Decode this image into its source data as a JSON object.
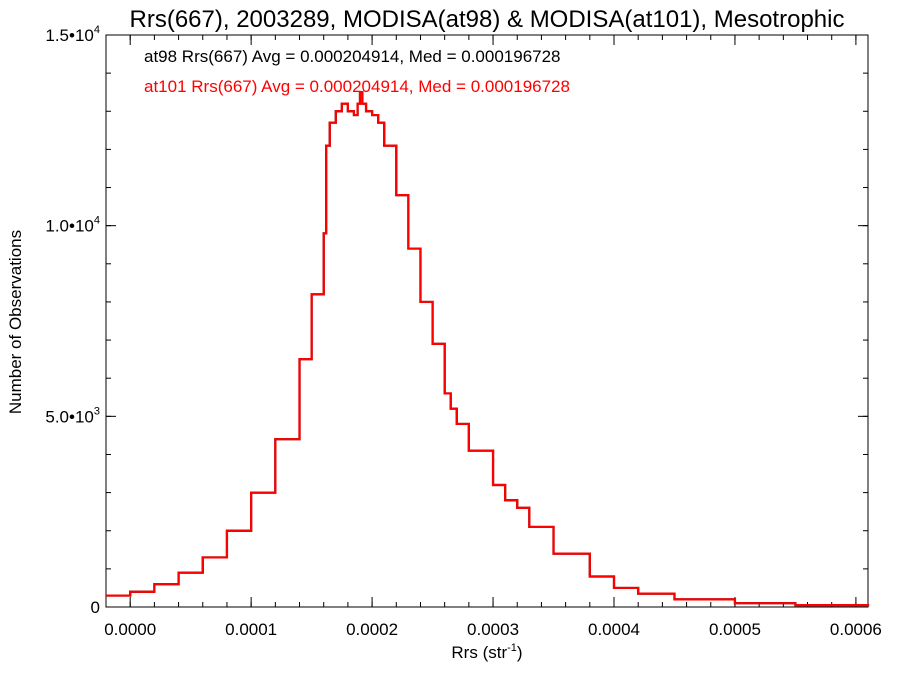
{
  "chart_data": {
    "type": "histogram-step",
    "title": "Rrs(667), 2003289, MODISA(at98) & MODISA(at101), Mesotrophic",
    "xlabel": "Rrs (str",
    "xlabel_sup": "-1",
    "xlabel_suffix": ")",
    "ylabel": "Number of Observations",
    "xlim": [
      -2e-05,
      0.00061
    ],
    "ylim": [
      0,
      15000
    ],
    "x_ticks": [
      {
        "value": 0.0,
        "label": "0.0000"
      },
      {
        "value": 0.0001,
        "label": "0.0001"
      },
      {
        "value": 0.0002,
        "label": "0.0002"
      },
      {
        "value": 0.0003,
        "label": "0.0003"
      },
      {
        "value": 0.0004,
        "label": "0.0004"
      },
      {
        "value": 0.0005,
        "label": "0.0005"
      },
      {
        "value": 0.0006,
        "label": "0.0006"
      }
    ],
    "y_ticks": [
      {
        "value": 0,
        "label": "0",
        "sup": ""
      },
      {
        "value": 5000,
        "label": "5.0•10",
        "sup": "3"
      },
      {
        "value": 10000,
        "label": "1.0•10",
        "sup": "4"
      },
      {
        "value": 15000,
        "label": "1.5•10",
        "sup": "4"
      }
    ],
    "grid": false,
    "annotations": [
      {
        "text": "at98 Rrs(667) Avg = 0.000204914, Med = 0.000196728",
        "color": "#000000"
      },
      {
        "text": "at101 Rrs(667) Avg = 0.000204914, Med = 0.000196728",
        "color": "#ff0000"
      }
    ],
    "series": [
      {
        "name": "at98",
        "color": "#000000",
        "x": [
          -2e-05,
          0.0,
          2e-05,
          4e-05,
          6e-05,
          8e-05,
          0.0001,
          0.00012,
          0.00014,
          0.00015,
          0.00016,
          0.000162,
          0.000165,
          0.00017,
          0.000175,
          0.00018,
          0.000185,
          0.000188,
          0.00019,
          0.000192,
          0.000195,
          0.0002,
          0.000205,
          0.00021,
          0.00022,
          0.00023,
          0.00024,
          0.00025,
          0.00026,
          0.000265,
          0.00027,
          0.00028,
          0.0003,
          0.00031,
          0.00032,
          0.00033,
          0.00035,
          0.00038,
          0.0004,
          0.00042,
          0.00045,
          0.0005,
          0.00055,
          0.00061
        ],
        "y": [
          300,
          400,
          600,
          900,
          1300,
          2000,
          3000,
          4400,
          6500,
          8200,
          9800,
          12100,
          12700,
          13000,
          13200,
          13000,
          12900,
          13200,
          13500,
          13200,
          13000,
          12900,
          12700,
          12100,
          10800,
          9400,
          8000,
          6900,
          5600,
          5200,
          4800,
          4100,
          3200,
          2800,
          2600,
          2100,
          1400,
          800,
          500,
          350,
          200,
          100,
          50,
          20
        ]
      },
      {
        "name": "at101",
        "color": "#ff0000",
        "x": [
          -2e-05,
          0.0,
          2e-05,
          4e-05,
          6e-05,
          8e-05,
          0.0001,
          0.00012,
          0.00014,
          0.00015,
          0.00016,
          0.000162,
          0.000165,
          0.00017,
          0.000175,
          0.00018,
          0.000185,
          0.000188,
          0.00019,
          0.000192,
          0.000195,
          0.0002,
          0.000205,
          0.00021,
          0.00022,
          0.00023,
          0.00024,
          0.00025,
          0.00026,
          0.000265,
          0.00027,
          0.00028,
          0.0003,
          0.00031,
          0.00032,
          0.00033,
          0.00035,
          0.00038,
          0.0004,
          0.00042,
          0.00045,
          0.0005,
          0.00055,
          0.00061
        ],
        "y": [
          300,
          400,
          600,
          900,
          1300,
          2000,
          3000,
          4400,
          6500,
          8200,
          9800,
          12100,
          12700,
          13000,
          13200,
          13000,
          12900,
          13200,
          13500,
          13200,
          13000,
          12900,
          12700,
          12100,
          10800,
          9400,
          8000,
          6900,
          5600,
          5200,
          4800,
          4100,
          3200,
          2800,
          2600,
          2100,
          1400,
          800,
          500,
          350,
          200,
          100,
          50,
          20
        ]
      }
    ]
  }
}
